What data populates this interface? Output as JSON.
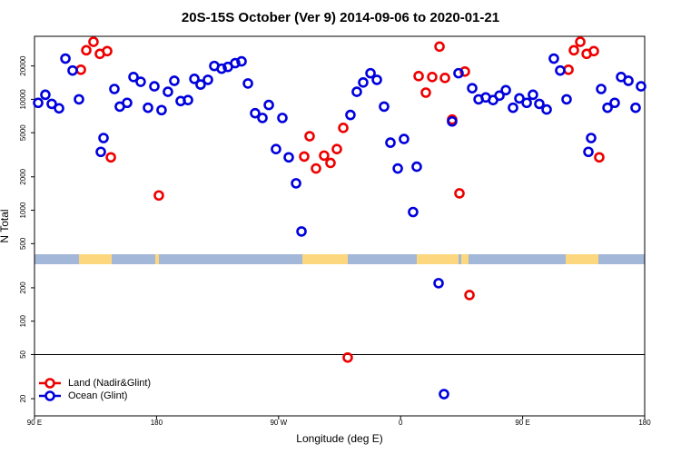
{
  "chart_data": {
    "type": "scatter",
    "title": "20S-15S October (Ver 9)   2014-09-06 to 2020-01-21",
    "xlabel": "Longitude (deg E)",
    "ylabel": "N Total",
    "log_y": true,
    "legend": "lower left",
    "hline": 50,
    "xlim": [
      90,
      540
    ],
    "xticks": [
      {
        "value": 90,
        "label": "90 E"
      },
      180,
      {
        "value": 270,
        "label": "90 W"
      },
      {
        "value": 360,
        "label": "0"
      },
      {
        "value": 450,
        "label": "90 E"
      },
      {
        "value": 540,
        "label": "180"
      }
    ],
    "ylim": [
      14,
      37000
    ],
    "yticks": [
      20,
      50,
      100,
      200,
      500,
      1000,
      2000,
      5000,
      10000,
      20000
    ],
    "series": [
      {
        "name": "Land (Nadir&Glint)",
        "color": "#ee0000",
        "x": [
          124.2,
          128.2,
          133.5,
          138.2,
          143.6,
          146.3,
          181.7,
          288.9,
          292.9,
          297.6,
          303.6,
          308.3,
          313.0,
          317.7,
          321.0,
          373.3,
          378.6,
          383.3,
          388.7,
          392.7,
          398.0,
          403.4,
          407.4,
          410.8,
          483.8,
          487.8,
          492.5,
          497.2,
          502.5,
          506.5
        ],
        "values": [
          18500,
          27700,
          33000,
          25700,
          27200,
          3000,
          1360,
          3050,
          4650,
          2380,
          3110,
          2670,
          3560,
          5530,
          47,
          16200,
          11500,
          15900,
          29900,
          15600,
          6570,
          1420,
          17800,
          172,
          18500,
          27700,
          33000,
          25700,
          27200,
          3000
        ]
      },
      {
        "name": "Ocean (Glint)",
        "color": "#0000dd",
        "x": [
          92.7,
          98.0,
          102.7,
          108.1,
          112.8,
          118.1,
          122.8,
          138.9,
          140.9,
          148.9,
          152.9,
          158.3,
          163.0,
          168.3,
          173.7,
          178.4,
          183.7,
          188.4,
          193.1,
          197.8,
          203.2,
          207.9,
          212.5,
          217.9,
          222.6,
          228.0,
          232.6,
          238.0,
          242.7,
          247.4,
          252.7,
          258.1,
          262.8,
          268.1,
          272.8,
          277.5,
          282.9,
          286.9,
          323.0,
          327.7,
          332.4,
          337.8,
          342.5,
          347.8,
          352.5,
          357.9,
          362.5,
          369.2,
          371.9,
          388.0,
          392.0,
          398.0,
          402.7,
          412.8,
          417.5,
          422.8,
          428.2,
          432.9,
          437.6,
          442.9,
          447.6,
          453.0,
          457.6,
          462.3,
          467.7,
          473.0,
          477.7,
          482.4,
          498.5,
          500.5,
          507.9,
          512.6,
          517.9,
          522.6,
          528.0,
          533.3,
          537.3
        ],
        "values": [
          9300,
          11000,
          9100,
          8300,
          23300,
          18200,
          10000,
          3360,
          4480,
          12400,
          8600,
          9300,
          15900,
          14400,
          8400,
          13100,
          8000,
          11700,
          14700,
          9650,
          9850,
          15300,
          13600,
          15000,
          20000,
          18900,
          19600,
          21200,
          22000,
          13900,
          7500,
          6800,
          8900,
          3560,
          6800,
          3000,
          1750,
          644,
          7230,
          11700,
          14200,
          17200,
          15000,
          8600,
          4070,
          2380,
          4390,
          964,
          2470,
          220,
          22,
          6320,
          17200,
          12600,
          10000,
          10400,
          9850,
          10800,
          12100,
          8400,
          10200,
          9300,
          11000,
          9100,
          8100,
          23300,
          18200,
          10000,
          3360,
          4480,
          12400,
          8400,
          9300,
          15900,
          14700,
          8400,
          13100
        ]
      }
    ]
  }
}
